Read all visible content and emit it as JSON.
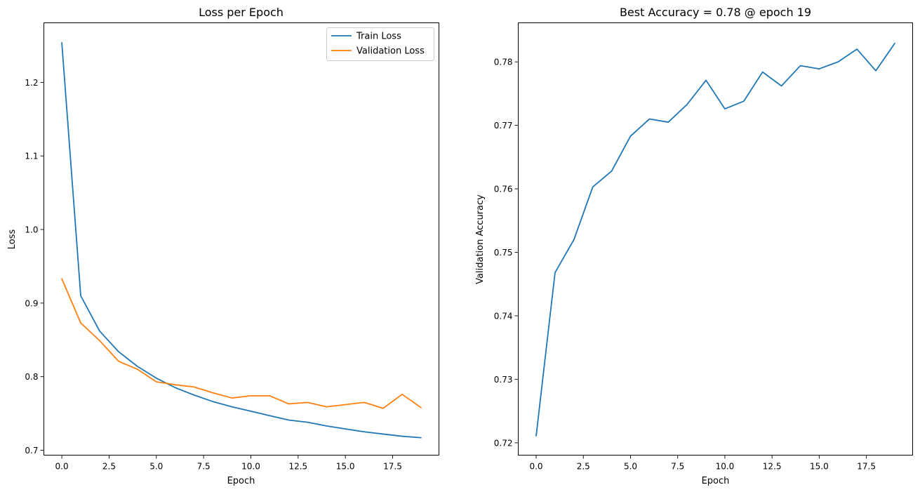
{
  "chart_data": [
    {
      "type": "line",
      "title": "Loss per Epoch",
      "xlabel": "Epoch",
      "ylabel": "Loss",
      "xlim": [
        -0.95,
        19.95
      ],
      "ylim": [
        0.6933,
        1.281
      ],
      "xticks": [
        0.0,
        2.5,
        5.0,
        7.5,
        10.0,
        12.5,
        15.0,
        17.5
      ],
      "xtick_labels": [
        "0.0",
        "2.5",
        "5.0",
        "7.5",
        "10.0",
        "12.5",
        "15.0",
        "17.5"
      ],
      "yticks": [
        0.7,
        0.8,
        0.9,
        1.0,
        1.1,
        1.2
      ],
      "ytick_labels": [
        "0.7",
        "0.8",
        "0.9",
        "1.0",
        "1.1",
        "1.2"
      ],
      "legend_position": "upper right",
      "x": [
        0,
        1,
        2,
        3,
        4,
        5,
        6,
        7,
        8,
        9,
        10,
        11,
        12,
        13,
        14,
        15,
        16,
        17,
        18,
        19
      ],
      "series": [
        {
          "name": "Train Loss",
          "color": "#1f77b4",
          "values": [
            1.254,
            0.91,
            0.862,
            0.834,
            0.814,
            0.798,
            0.785,
            0.775,
            0.766,
            0.759,
            0.753,
            0.747,
            0.741,
            0.738,
            0.733,
            0.729,
            0.725,
            0.722,
            0.719,
            0.717
          ]
        },
        {
          "name": "Validation Loss",
          "color": "#ff7f0e",
          "values": [
            0.933,
            0.873,
            0.849,
            0.821,
            0.81,
            0.793,
            0.789,
            0.786,
            0.778,
            0.771,
            0.774,
            0.774,
            0.763,
            0.765,
            0.759,
            0.762,
            0.765,
            0.757,
            0.776,
            0.758
          ]
        }
      ]
    },
    {
      "type": "line",
      "title": "Best Accuracy = 0.78 @ epoch 19",
      "xlabel": "Epoch",
      "ylabel": "Validation Accuracy",
      "xlim": [
        -0.95,
        19.95
      ],
      "ylim": [
        0.71805,
        0.78615
      ],
      "xticks": [
        0.0,
        2.5,
        5.0,
        7.5,
        10.0,
        12.5,
        15.0,
        17.5
      ],
      "xtick_labels": [
        "0.0",
        "2.5",
        "5.0",
        "7.5",
        "10.0",
        "12.5",
        "15.0",
        "17.5"
      ],
      "yticks": [
        0.72,
        0.73,
        0.74,
        0.75,
        0.76,
        0.77,
        0.78
      ],
      "ytick_labels": [
        "0.72",
        "0.73",
        "0.74",
        "0.75",
        "0.76",
        "0.77",
        "0.78"
      ],
      "x": [
        0,
        1,
        2,
        3,
        4,
        5,
        6,
        7,
        8,
        9,
        10,
        11,
        12,
        13,
        14,
        15,
        16,
        17,
        18,
        19
      ],
      "series": [
        {
          "color": "#1f77b4",
          "values": [
            0.7211,
            0.7468,
            0.752,
            0.7603,
            0.7628,
            0.7683,
            0.771,
            0.7705,
            0.7733,
            0.7771,
            0.7726,
            0.7738,
            0.7784,
            0.7762,
            0.7794,
            0.7789,
            0.78,
            0.782,
            0.7786,
            0.7829
          ]
        }
      ]
    }
  ]
}
